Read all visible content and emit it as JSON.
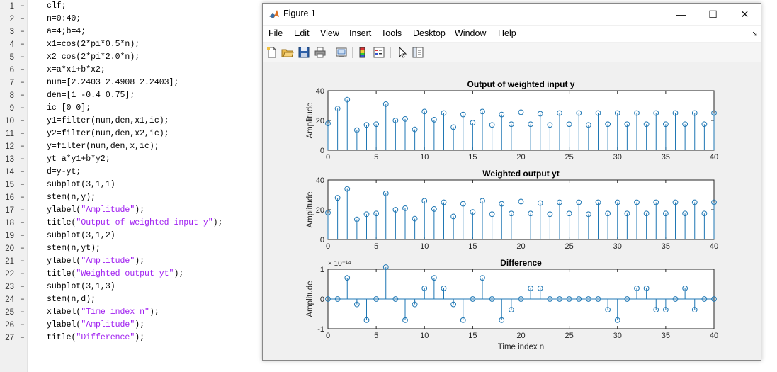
{
  "editor": {
    "lines": [
      {
        "num": "1",
        "parts": [
          {
            "t": "clf;",
            "s": false
          }
        ]
      },
      {
        "num": "2",
        "parts": [
          {
            "t": "n=0:40;",
            "s": false
          }
        ]
      },
      {
        "num": "3",
        "parts": [
          {
            "t": "a=4;b=4;",
            "s": false
          }
        ]
      },
      {
        "num": "4",
        "parts": [
          {
            "t": "x1=cos(2*pi*0.5*n);",
            "s": false
          }
        ]
      },
      {
        "num": "5",
        "parts": [
          {
            "t": "x2=cos(2*pi*2.0*n);",
            "s": false
          }
        ]
      },
      {
        "num": "6",
        "parts": [
          {
            "t": "x=a*x1+b*x2;",
            "s": false
          }
        ]
      },
      {
        "num": "7",
        "parts": [
          {
            "t": "num=[2.2403 2.4908 2.2403];",
            "s": false
          }
        ]
      },
      {
        "num": "8",
        "parts": [
          {
            "t": "den=[1 -0.4 0.75];",
            "s": false
          }
        ]
      },
      {
        "num": "9",
        "parts": [
          {
            "t": "ic=[0 0];",
            "s": false
          }
        ]
      },
      {
        "num": "10",
        "parts": [
          {
            "t": "y1=filter(num,den,x1,ic);",
            "s": false
          }
        ]
      },
      {
        "num": "11",
        "parts": [
          {
            "t": "y2=filter(num,den,x2,ic);",
            "s": false
          }
        ]
      },
      {
        "num": "12",
        "parts": [
          {
            "t": "y=filter(num,den,x,ic);",
            "s": false
          }
        ]
      },
      {
        "num": "13",
        "parts": [
          {
            "t": "yt=a*y1+b*y2;",
            "s": false
          }
        ]
      },
      {
        "num": "14",
        "parts": [
          {
            "t": "d=y-yt;",
            "s": false
          }
        ]
      },
      {
        "num": "15",
        "parts": [
          {
            "t": "subplot(3,1,1)",
            "s": false
          }
        ]
      },
      {
        "num": "16",
        "parts": [
          {
            "t": "stem(n,y);",
            "s": false
          }
        ]
      },
      {
        "num": "17",
        "parts": [
          {
            "t": "ylabel(",
            "s": false
          },
          {
            "t": "\"Amplitude\"",
            "s": true
          },
          {
            "t": ");",
            "s": false
          }
        ]
      },
      {
        "num": "18",
        "parts": [
          {
            "t": "title(",
            "s": false
          },
          {
            "t": "\"Output of weighted input y\"",
            "s": true
          },
          {
            "t": ");",
            "s": false
          }
        ]
      },
      {
        "num": "19",
        "parts": [
          {
            "t": "subplot(3,1,2)",
            "s": false
          }
        ]
      },
      {
        "num": "20",
        "parts": [
          {
            "t": "stem(n,yt);",
            "s": false
          }
        ]
      },
      {
        "num": "21",
        "parts": [
          {
            "t": "ylabel(",
            "s": false
          },
          {
            "t": "\"Amplitude\"",
            "s": true
          },
          {
            "t": ");",
            "s": false
          }
        ]
      },
      {
        "num": "22",
        "parts": [
          {
            "t": "title(",
            "s": false
          },
          {
            "t": "\"Weighted output yt\"",
            "s": true
          },
          {
            "t": ");",
            "s": false
          }
        ]
      },
      {
        "num": "23",
        "parts": [
          {
            "t": "subplot(3,1,3)",
            "s": false
          }
        ]
      },
      {
        "num": "24",
        "parts": [
          {
            "t": "stem(n,d);",
            "s": false
          }
        ]
      },
      {
        "num": "25",
        "parts": [
          {
            "t": "xlabel(",
            "s": false
          },
          {
            "t": "\"Time index n\"",
            "s": true
          },
          {
            "t": ");",
            "s": false
          }
        ]
      },
      {
        "num": "26",
        "parts": [
          {
            "t": "ylabel(",
            "s": false
          },
          {
            "t": "\"Amplitude\"",
            "s": true
          },
          {
            "t": ");",
            "s": false
          }
        ]
      },
      {
        "num": "27",
        "parts": [
          {
            "t": "title(",
            "s": false
          },
          {
            "t": "\"Difference\"",
            "s": true
          },
          {
            "t": ");",
            "s": false
          }
        ]
      }
    ],
    "dash": "–"
  },
  "figure": {
    "title": "Figure 1",
    "menus": [
      "File",
      "Edit",
      "View",
      "Insert",
      "Tools",
      "Desktop",
      "Window",
      "Help"
    ],
    "window_buttons": {
      "minimize": "—",
      "maximize": "☐",
      "close": "✕"
    },
    "toolbar_icons": [
      "new-figure-icon",
      "open-file-icon",
      "save-icon",
      "print-icon",
      "link-plot-icon",
      "colorbar-icon",
      "legend-icon",
      "pointer-icon",
      "property-inspector-icon"
    ]
  },
  "colors": {
    "stem": "#1f77b4",
    "string": "#a020f0",
    "accent": "#0072bd"
  },
  "chart_data": [
    {
      "type": "stem",
      "title": "Output of weighted input y",
      "xlabel": "",
      "ylabel": "Amplitude",
      "xlim": [
        0,
        40
      ],
      "ylim": [
        0,
        40
      ],
      "xticks": [
        "0",
        "5",
        "10",
        "15",
        "20",
        "25",
        "30",
        "35",
        "40"
      ],
      "yticks": [
        "0",
        "20",
        "40"
      ],
      "exponent": "",
      "x": [
        0,
        1,
        2,
        3,
        4,
        5,
        6,
        7,
        8,
        9,
        10,
        11,
        12,
        13,
        14,
        15,
        16,
        17,
        18,
        19,
        20,
        21,
        22,
        23,
        24,
        25,
        26,
        27,
        28,
        29,
        30,
        31,
        32,
        33,
        34,
        35,
        36,
        37,
        38,
        39,
        40
      ],
      "values": [
        18,
        28,
        34,
        13.5,
        17,
        17.5,
        31,
        20,
        21,
        14,
        26,
        20.5,
        25,
        15.5,
        24,
        18.5,
        26,
        17,
        24,
        17.5,
        25.5,
        17.5,
        24.5,
        17,
        25,
        17.5,
        25,
        17,
        25,
        17.5,
        25,
        17.5,
        25,
        17.5,
        25,
        17.5,
        25,
        17.5,
        25,
        17.5,
        25
      ]
    },
    {
      "type": "stem",
      "title": "Weighted output yt",
      "xlabel": "",
      "ylabel": "Amplitude",
      "xlim": [
        0,
        40
      ],
      "ylim": [
        0,
        40
      ],
      "xticks": [
        "0",
        "5",
        "10",
        "15",
        "20",
        "25",
        "30",
        "35",
        "40"
      ],
      "yticks": [
        "0",
        "20",
        "40"
      ],
      "exponent": "",
      "x": [
        0,
        1,
        2,
        3,
        4,
        5,
        6,
        7,
        8,
        9,
        10,
        11,
        12,
        13,
        14,
        15,
        16,
        17,
        18,
        19,
        20,
        21,
        22,
        23,
        24,
        25,
        26,
        27,
        28,
        29,
        30,
        31,
        32,
        33,
        34,
        35,
        36,
        37,
        38,
        39,
        40
      ],
      "values": [
        18,
        28,
        34,
        13.5,
        17,
        17.5,
        31,
        20,
        21,
        14,
        26,
        20.5,
        25,
        15.5,
        24,
        18.5,
        26,
        17,
        24,
        17.5,
        25.5,
        17.5,
        24.5,
        17,
        25,
        17.5,
        25,
        17,
        25,
        17.5,
        25,
        17.5,
        25,
        17.5,
        25,
        17.5,
        25,
        17.5,
        25,
        17.5,
        25
      ]
    },
    {
      "type": "stem",
      "title": "Difference",
      "xlabel": "Time index n",
      "ylabel": "Amplitude",
      "xlim": [
        0,
        40
      ],
      "ylim": [
        -1,
        1
      ],
      "xticks": [
        "0",
        "5",
        "10",
        "15",
        "20",
        "25",
        "30",
        "35",
        "40"
      ],
      "yticks": [
        "-1",
        "0",
        "1"
      ],
      "exponent": "× 10⁻¹⁴",
      "x": [
        0,
        1,
        2,
        3,
        4,
        5,
        6,
        7,
        8,
        9,
        10,
        11,
        12,
        13,
        14,
        15,
        16,
        17,
        18,
        19,
        20,
        21,
        22,
        23,
        24,
        25,
        26,
        27,
        28,
        29,
        30,
        31,
        32,
        33,
        34,
        35,
        36,
        37,
        38,
        39,
        40
      ],
      "values": [
        0,
        0,
        0.71,
        -0.18,
        -0.71,
        0,
        1.07,
        0,
        -0.71,
        -0.18,
        0.36,
        0.71,
        0.36,
        -0.18,
        -0.71,
        0,
        0.71,
        0,
        -0.71,
        -0.36,
        0,
        0.36,
        0.36,
        0,
        0,
        0,
        0,
        0,
        0,
        -0.36,
        -0.71,
        0,
        0.36,
        0.36,
        -0.36,
        -0.36,
        0,
        0.36,
        -0.36,
        0,
        0
      ]
    }
  ]
}
